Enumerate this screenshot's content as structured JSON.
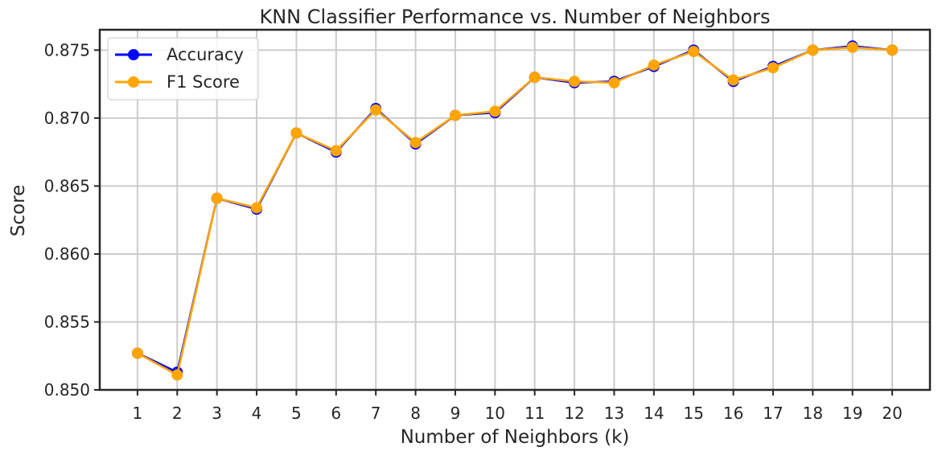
{
  "chart_data": {
    "type": "line",
    "title": "KNN Classifier Performance vs. Number of Neighbors",
    "xlabel": "Number of Neighbors (k)",
    "ylabel": "Score",
    "x": [
      1,
      2,
      3,
      4,
      5,
      6,
      7,
      8,
      9,
      10,
      11,
      12,
      13,
      14,
      15,
      16,
      17,
      18,
      19,
      20
    ],
    "xticks": [
      "1",
      "2",
      "3",
      "4",
      "5",
      "6",
      "7",
      "8",
      "9",
      "10",
      "11",
      "12",
      "13",
      "14",
      "15",
      "16",
      "17",
      "18",
      "19",
      "20"
    ],
    "xlim": [
      0.05,
      20.95
    ],
    "ylim": [
      0.85,
      0.8765
    ],
    "yticks": [
      "0.850",
      "0.855",
      "0.860",
      "0.865",
      "0.870",
      "0.875"
    ],
    "yticks_values": [
      0.85,
      0.855,
      0.86,
      0.865,
      0.87,
      0.875
    ],
    "grid": true,
    "legend_position": "top-left",
    "series": [
      {
        "name": "Accuracy",
        "color": "#0000ff",
        "values": [
          0.8527,
          0.8513,
          0.8641,
          0.8633,
          0.8689,
          0.8675,
          0.8707,
          0.8681,
          0.8702,
          0.8704,
          0.873,
          0.8726,
          0.8727,
          0.8738,
          0.875,
          0.8727,
          0.8738,
          0.875,
          0.8753,
          0.875
        ]
      },
      {
        "name": "F1 Score",
        "color": "#ffa500",
        "values": [
          0.8527,
          0.8511,
          0.8641,
          0.8634,
          0.8689,
          0.8676,
          0.8706,
          0.8682,
          0.8702,
          0.8705,
          0.873,
          0.8727,
          0.8726,
          0.8739,
          0.8749,
          0.8728,
          0.8737,
          0.875,
          0.8752,
          0.875
        ]
      }
    ]
  }
}
